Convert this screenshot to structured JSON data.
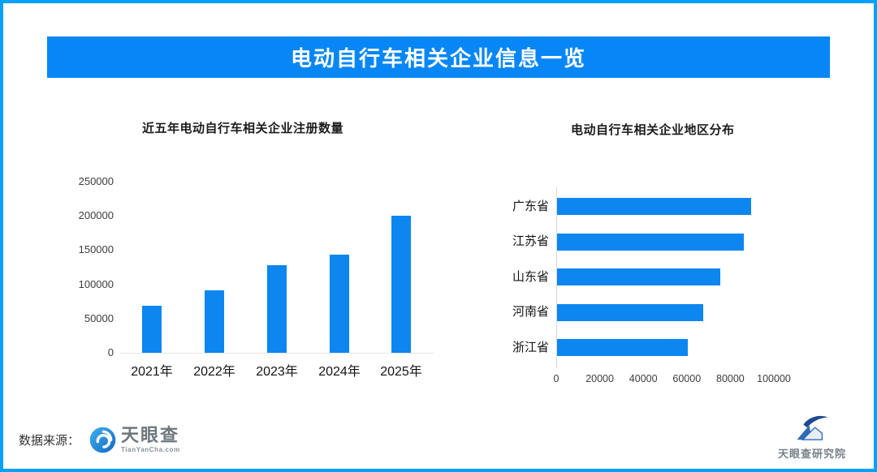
{
  "colors": {
    "border_blue": "#00A1F8",
    "banner_blue": "#0787F6",
    "bar_blue": "#0D86F0"
  },
  "header": {
    "title": "电动自行车相关企业信息一览"
  },
  "chart_data": [
    {
      "type": "bar",
      "orientation": "vertical",
      "title": "近五年电动自行车相关企业注册数量",
      "categories": [
        "2021年",
        "2022年",
        "2023年",
        "2024年",
        "2025年"
      ],
      "values": [
        69000,
        91000,
        128000,
        143000,
        200000
      ],
      "xlabel": "",
      "ylabel": "",
      "ylim": [
        0,
        250000
      ],
      "yticks": [
        0,
        50000,
        100000,
        150000,
        200000,
        250000
      ],
      "grid": false,
      "legend": "none",
      "bar_color": "#0D86F0"
    },
    {
      "type": "bar",
      "orientation": "horizontal",
      "title": "电动自行车相关企业地区分布",
      "categories": [
        "广东省",
        "江苏省",
        "山东省",
        "河南省",
        "浙江省"
      ],
      "values": [
        89000,
        86000,
        75000,
        67000,
        60000
      ],
      "xlabel": "",
      "ylabel": "",
      "xlim": [
        0,
        100000
      ],
      "xticks": [
        0,
        20000,
        40000,
        60000,
        80000,
        100000
      ],
      "grid": false,
      "legend": "none",
      "bar_color": "#0D86F0"
    }
  ],
  "footer": {
    "source_label": "数据来源：",
    "tianyancha": {
      "name": "天眼查",
      "domain": "TianYanCha.com",
      "icon": "aperture-swirl-icon"
    },
    "research_institute": {
      "name": "天眼查研究院",
      "icon": "mountain-swoosh-icon"
    }
  }
}
